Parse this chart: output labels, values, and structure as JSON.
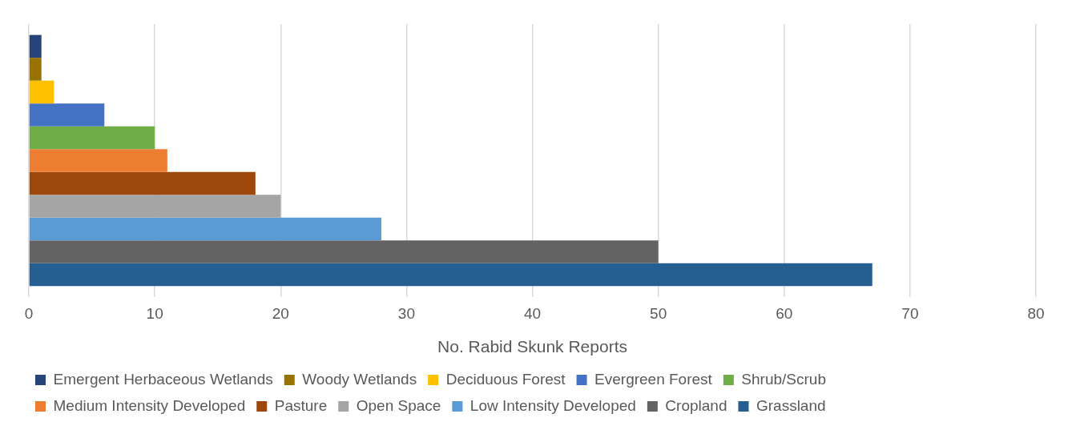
{
  "chart_data": {
    "type": "bar",
    "orientation": "horizontal",
    "xlabel": "No. Rabid Skunk Reports",
    "categories": [
      null
    ],
    "series": [
      {
        "name": "Emergent Herbaceous Wetlands",
        "color": "#264478",
        "values": [
          1
        ]
      },
      {
        "name": "Woody Wetlands",
        "color": "#997300",
        "values": [
          1
        ]
      },
      {
        "name": "Deciduous Forest",
        "color": "#ffc000",
        "values": [
          2
        ]
      },
      {
        "name": "Evergreen Forest",
        "color": "#4472c4",
        "values": [
          6
        ]
      },
      {
        "name": "Shrub/Scrub",
        "color": "#70ad47",
        "values": [
          10
        ]
      },
      {
        "name": "Medium Intensity Developed",
        "color": "#ed7d31",
        "values": [
          11
        ]
      },
      {
        "name": "Pasture",
        "color": "#9e480e",
        "values": [
          18
        ]
      },
      {
        "name": "Open Space",
        "color": "#a5a5a5",
        "values": [
          20
        ]
      },
      {
        "name": "Low Intensity Developed",
        "color": "#5b9bd5",
        "values": [
          28
        ]
      },
      {
        "name": "Cropland",
        "color": "#636363",
        "values": [
          50
        ]
      },
      {
        "name": "Grassland",
        "color": "#255e91",
        "values": [
          67
        ]
      }
    ],
    "xlim": [
      0,
      80
    ],
    "xticks": [
      0,
      10,
      20,
      30,
      40,
      50,
      60,
      70,
      80
    ],
    "grid": "x",
    "legend": "bottom"
  }
}
